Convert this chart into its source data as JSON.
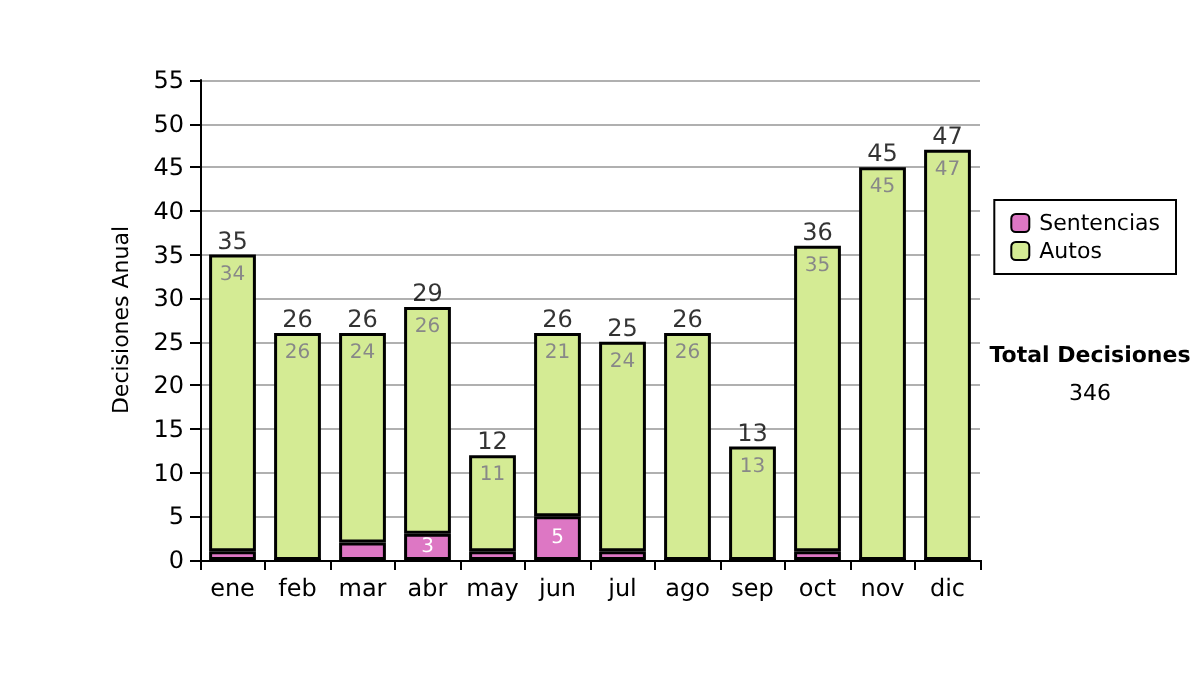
{
  "chart_data": {
    "type": "bar",
    "stacked": true,
    "ylabel": "Decisiones Anual",
    "categories": [
      "ene",
      "feb",
      "mar",
      "abr",
      "may",
      "jun",
      "jul",
      "ago",
      "sep",
      "oct",
      "nov",
      "dic"
    ],
    "series": [
      {
        "name": "Sentencias",
        "color": "#dd77c4",
        "values": [
          1,
          0,
          2,
          3,
          1,
          5,
          1,
          0,
          0,
          1,
          0,
          0
        ],
        "value_labels": [
          null,
          null,
          null,
          "3",
          null,
          "5",
          null,
          null,
          null,
          null,
          null,
          null
        ]
      },
      {
        "name": "Autos",
        "color": "#d4eb94",
        "values": [
          34,
          26,
          24,
          26,
          11,
          21,
          24,
          26,
          13,
          35,
          45,
          47
        ],
        "value_labels": [
          "34",
          "26",
          "24",
          "26",
          "11",
          "21",
          "24",
          "26",
          "13",
          "35",
          "45",
          "47"
        ]
      }
    ],
    "totals": [
      "35",
      "26",
      "26",
      "29",
      "12",
      "26",
      "25",
      "26",
      "13",
      "36",
      "45",
      "47"
    ],
    "ylim": [
      0,
      55
    ],
    "yticks": [
      0,
      5,
      10,
      15,
      20,
      25,
      30,
      35,
      40,
      45,
      50,
      55
    ],
    "grid": "y",
    "legend": "right",
    "annotations": [
      "Total Decisiones",
      "346"
    ]
  }
}
